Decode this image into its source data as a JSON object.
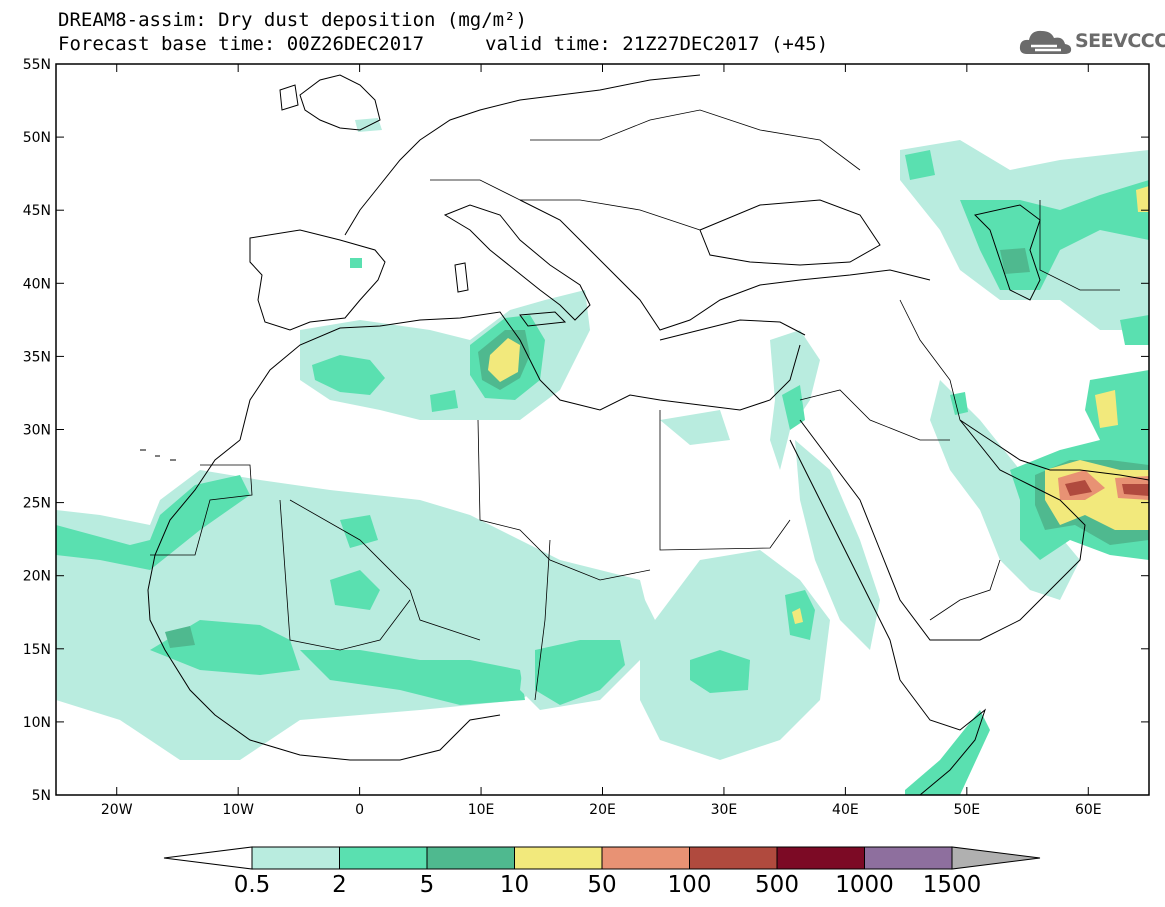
{
  "title": {
    "line1": "DREAM8-assim: Dry dust deposition (mg/m²)",
    "line2": "Forecast base time: 00Z26DEC2017",
    "line2b": "valid time: 21Z27DEC2017 (+45)"
  },
  "logo": {
    "text": "SEEVCCC",
    "icon": "cloud-logo-icon"
  },
  "map": {
    "lon_range": [
      -25,
      65
    ],
    "lat_range": [
      5,
      55
    ],
    "lat_labels": [
      "55N",
      "50N",
      "45N",
      "40N",
      "35N",
      "30N",
      "25N",
      "20N",
      "15N",
      "10N",
      "5N"
    ],
    "lat_values": [
      55,
      50,
      45,
      40,
      35,
      30,
      25,
      20,
      15,
      10,
      5
    ],
    "lon_labels": [
      "20W",
      "10W",
      "0",
      "10E",
      "20E",
      "30E",
      "40E",
      "50E",
      "60E"
    ],
    "lon_values": [
      -20,
      -10,
      0,
      10,
      20,
      30,
      40,
      50,
      60
    ]
  },
  "colorbar": {
    "labels": [
      "0.5",
      "2",
      "5",
      "10",
      "50",
      "100",
      "500",
      "1000",
      "1500"
    ],
    "colors": [
      "#ffffff",
      "#b9ecdf",
      "#5ae0b0",
      "#4fb98f",
      "#f2e97c",
      "#e89274",
      "#b04a3e",
      "#7c0a25",
      "#8e6f9e",
      "#b0b0b0"
    ]
  }
}
